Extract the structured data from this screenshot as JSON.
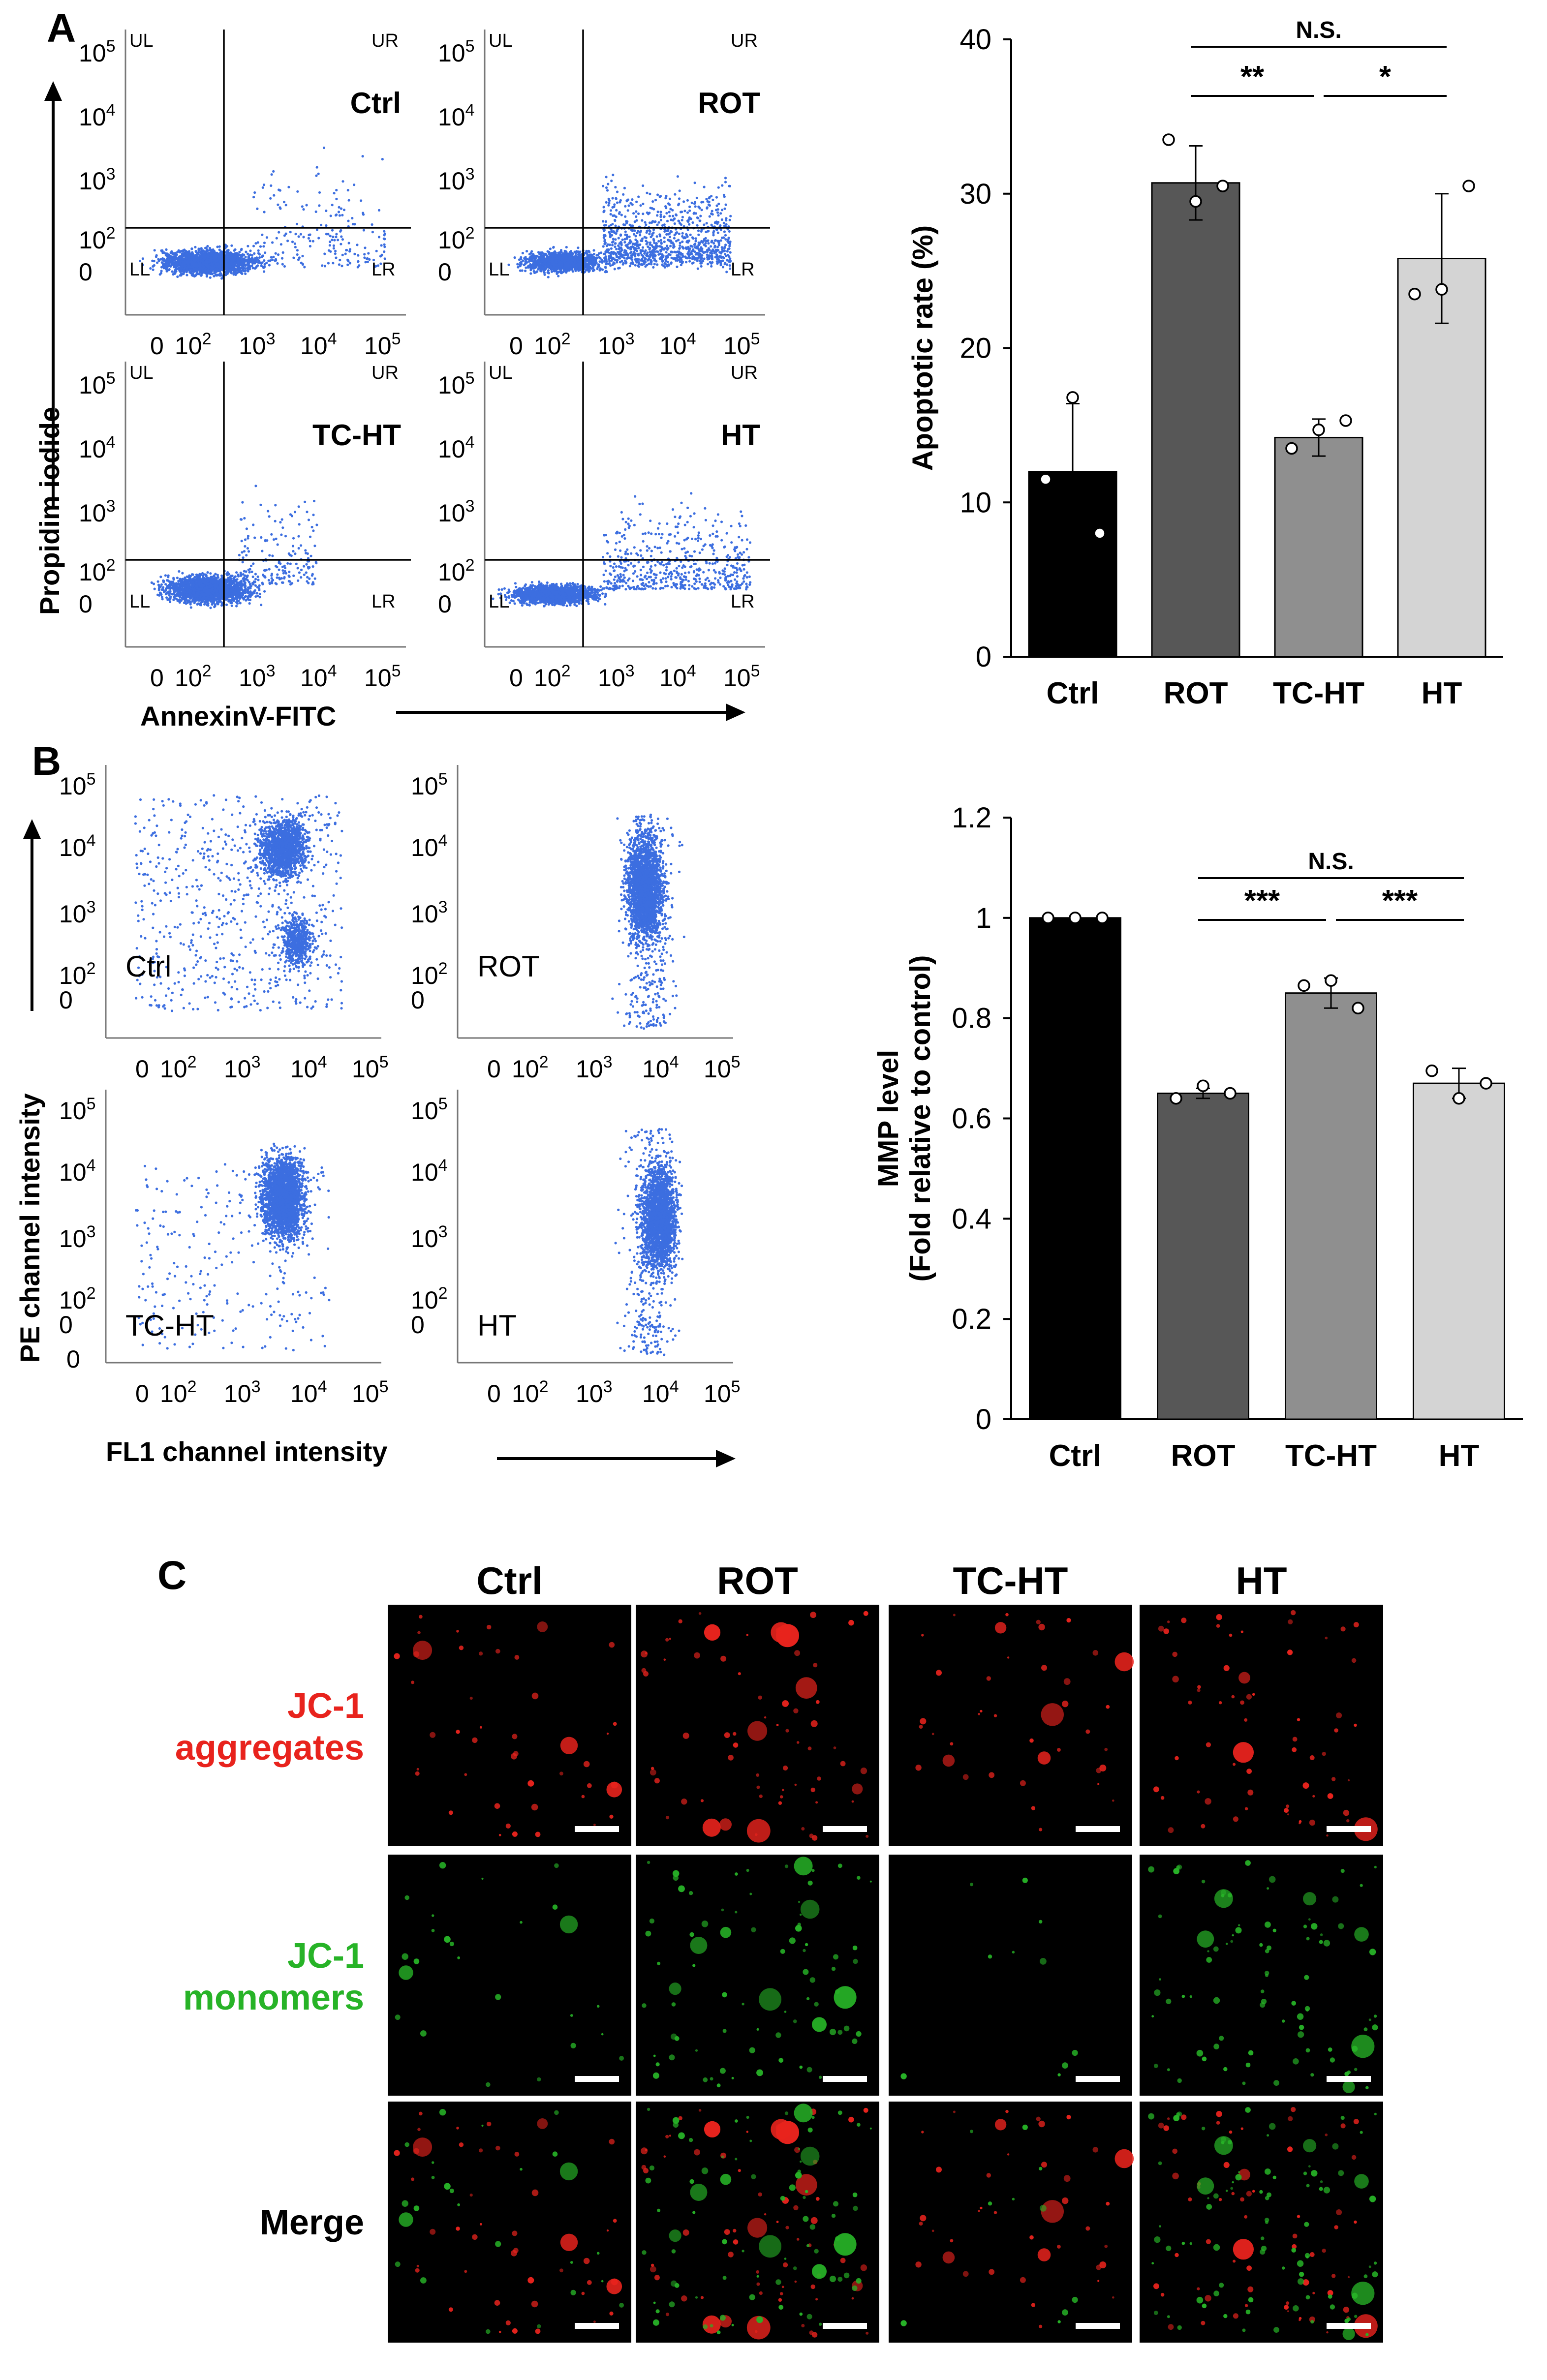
{
  "panels": {
    "A": {
      "label": "A",
      "x_axis_title": "AnnexinV-FITC",
      "y_axis_title": "Propidim iodide"
    },
    "B": {
      "label": "B",
      "x_axis_title": "FL1 channel intensity",
      "y_axis_title": "PE channel intensity"
    },
    "C": {
      "label": "C"
    }
  },
  "flow_A": {
    "quadrants": [
      "UL",
      "UR",
      "LL",
      "LR"
    ],
    "conditions": [
      "Ctrl",
      "ROT",
      "TC-HT",
      "HT"
    ],
    "x_ticks": [
      "0",
      "10",
      "10",
      "10",
      "10"
    ],
    "x_tick_exps": [
      "",
      "2",
      "3",
      "4",
      "5"
    ],
    "y_ticks": [
      "10",
      "10",
      "10",
      "10",
      "0"
    ],
    "y_tick_exps": [
      "5",
      "4",
      "3",
      "2",
      ""
    ]
  },
  "flow_B": {
    "conditions": [
      "Ctrl",
      "ROT",
      "TC-HT",
      "HT"
    ],
    "x_ticks": [
      "0",
      "10",
      "10",
      "10",
      "10"
    ],
    "x_tick_exps": [
      "",
      "2",
      "3",
      "4",
      "5"
    ],
    "y_ticks": [
      "10",
      "10",
      "10",
      "10",
      "0"
    ],
    "y_tick_exps": [
      "5",
      "4",
      "3",
      "2",
      ""
    ],
    "y_zero_bottom": "0"
  },
  "chart_data": [
    {
      "type": "bar",
      "title": "",
      "xlabel": "",
      "ylabel": "Apoptotic rate (%)",
      "categories": [
        "Ctrl",
        "ROT",
        "TC-HT",
        "HT"
      ],
      "values": [
        12.0,
        30.7,
        14.2,
        25.8
      ],
      "errors": [
        4.4,
        2.4,
        1.2,
        4.2
      ],
      "points": [
        [
          11.5,
          16.8,
          8.0
        ],
        [
          33.5,
          29.5,
          30.5
        ],
        [
          13.5,
          14.7,
          15.3
        ],
        [
          23.5,
          23.8,
          30.5
        ]
      ],
      "colors": [
        "#000000",
        "#575757",
        "#8f8f8f",
        "#d4d4d4"
      ],
      "ylim": [
        0,
        40
      ],
      "yticks": [
        "0",
        "10",
        "20",
        "30",
        "40"
      ],
      "significance": [
        {
          "from": 1,
          "to": 2,
          "label": "**"
        },
        {
          "from": 2,
          "to": 3,
          "label": "*"
        },
        {
          "from": 1,
          "to": 3,
          "label": "N.S."
        }
      ]
    },
    {
      "type": "bar",
      "title": "",
      "xlabel": "",
      "ylabel": "MMP level",
      "ylabel2": "(Fold relative to control)",
      "categories": [
        "Ctrl",
        "ROT",
        "TC-HT",
        "HT"
      ],
      "values": [
        1.0,
        0.65,
        0.85,
        0.67
      ],
      "errors": [
        0.0,
        0.01,
        0.03,
        0.03
      ],
      "points": [
        [
          1.0,
          1.0,
          1.0
        ],
        [
          0.64,
          0.665,
          0.65
        ],
        [
          0.865,
          0.875,
          0.82
        ],
        [
          0.695,
          0.64,
          0.67
        ]
      ],
      "colors": [
        "#000000",
        "#575757",
        "#8f8f8f",
        "#d4d4d4"
      ],
      "ylim": [
        0,
        1.2
      ],
      "yticks": [
        "0",
        "0.2",
        "0.4",
        "0.6",
        "0.8",
        "1",
        "1.2"
      ],
      "significance": [
        {
          "from": 1,
          "to": 2,
          "label": "***"
        },
        {
          "from": 2,
          "to": 3,
          "label": "***"
        },
        {
          "from": 1,
          "to": 3,
          "label": "N.S."
        }
      ]
    }
  ],
  "microscopy": {
    "columns": [
      "Ctrl",
      "ROT",
      "TC-HT",
      "HT"
    ],
    "rows": [
      {
        "line1": "JC-1",
        "line2": "aggregates",
        "color": "#e8231d"
      },
      {
        "line1": "JC-1",
        "line2": "monomers",
        "color": "#27b327"
      },
      {
        "line1": "Merge",
        "line2": "",
        "color": "#000000"
      }
    ]
  },
  "colors": {
    "scatter": "#3c6ee0",
    "red_signal": "#e8231d",
    "green_signal": "#27b327"
  }
}
